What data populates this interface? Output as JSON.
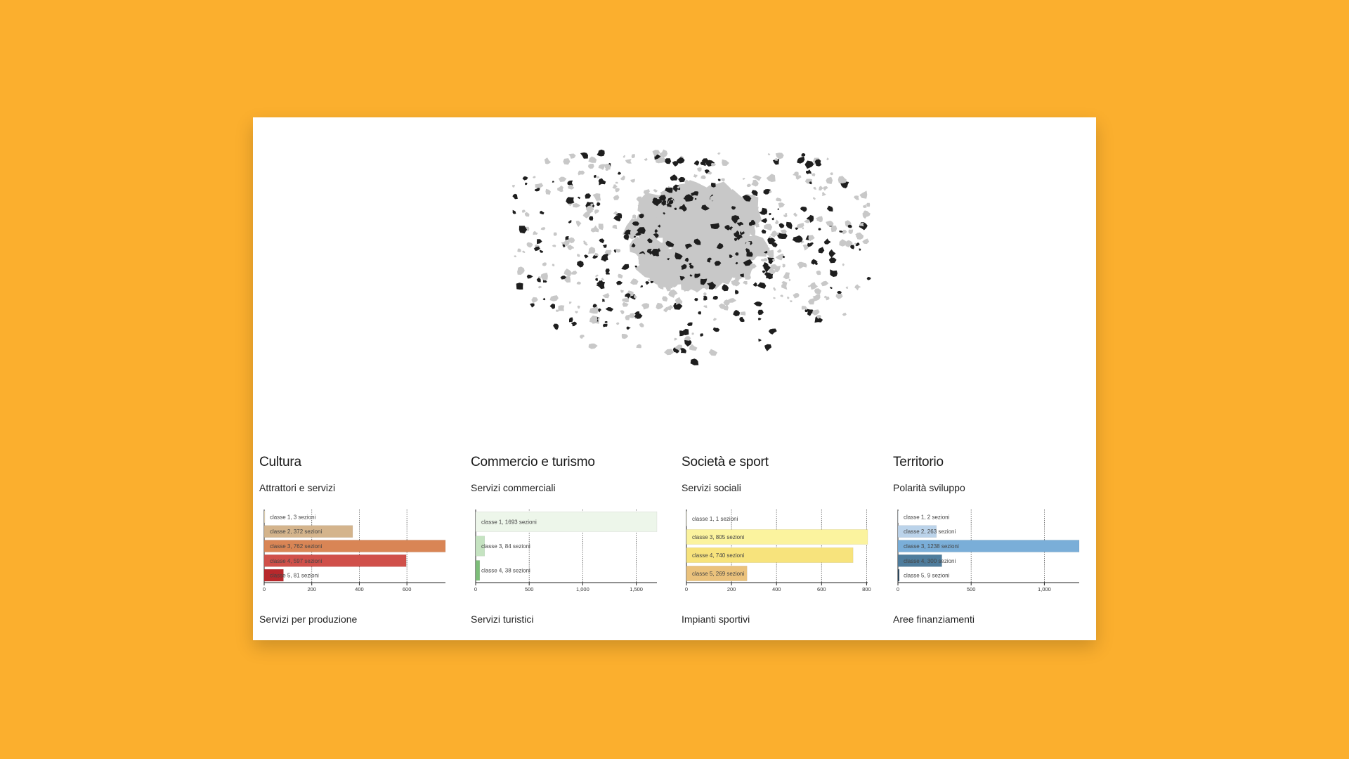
{
  "colors": {
    "background": "#FBAF2E",
    "card": "#FFFFFF",
    "map_gray": "#C8C8C8",
    "map_dark": "#1E1E1E"
  },
  "panels": [
    {
      "id": "cultura",
      "title": "Cultura",
      "subtitle": "Attrattori e servizi",
      "footer": "Servizi per produzione",
      "chart_data": {
        "type": "bar",
        "orientation": "horizontal",
        "categories": [
          "classe 1",
          "classe 2",
          "classe 3",
          "classe 4",
          "classe 5"
        ],
        "labels": [
          "classe 1, 3 sezioni",
          "classe 2, 372 sezioni",
          "classe 3, 762 sezioni",
          "classe 4, 597 sezioni",
          "classe 5, 81 sezioni"
        ],
        "values": [
          3,
          372,
          762,
          597,
          81
        ],
        "colors": [
          "#E8D8B8",
          "#D4B48C",
          "#D98555",
          "#D0504A",
          "#B8282C"
        ],
        "xlim": [
          0,
          762
        ],
        "xticks": [
          0,
          200,
          400,
          600
        ],
        "tick_labels": [
          "0",
          "200",
          "400",
          "600"
        ],
        "grid": true
      }
    },
    {
      "id": "commercio",
      "title": "Commercio e turismo",
      "subtitle": "Servizi commerciali",
      "footer": "Servizi turistici",
      "chart_data": {
        "type": "bar",
        "orientation": "horizontal",
        "categories": [
          "classe 1",
          "classe 3",
          "classe 4"
        ],
        "labels": [
          "classe 1, 1693 sezioni",
          "classe 3, 84 sezioni",
          "classe 4, 38 sezioni"
        ],
        "values": [
          1693,
          84,
          38
        ],
        "colors": [
          "#EDF6EA",
          "#C5E3C1",
          "#7DBE79"
        ],
        "xlim": [
          0,
          1693
        ],
        "xticks": [
          0,
          500,
          1000,
          1500
        ],
        "tick_labels": [
          "0",
          "500",
          "1,000",
          "1,500"
        ],
        "grid": true
      }
    },
    {
      "id": "societa",
      "title": "Società e sport",
      "subtitle": "Servizi sociali",
      "footer": "Impianti sportivi",
      "chart_data": {
        "type": "bar",
        "orientation": "horizontal",
        "categories": [
          "classe 1",
          "classe 3",
          "classe 4",
          "classe 5"
        ],
        "labels": [
          "classe 1, 1 sezioni",
          "classe 3, 805 sezioni",
          "classe 4, 740 sezioni",
          "classe 5, 269 sezioni"
        ],
        "values": [
          1,
          805,
          740,
          269
        ],
        "colors": [
          "#FDFCE8",
          "#FBF39E",
          "#F7E37C",
          "#EBC27C"
        ],
        "xlim": [
          0,
          805
        ],
        "xticks": [
          0,
          200,
          400,
          600,
          800
        ],
        "tick_labels": [
          "0",
          "200",
          "400",
          "600",
          "800"
        ],
        "grid": true
      }
    },
    {
      "id": "territorio",
      "title": "Territorio",
      "subtitle": "Polarità sviluppo",
      "footer": "Aree finanziamenti",
      "chart_data": {
        "type": "bar",
        "orientation": "horizontal",
        "categories": [
          "classe 1",
          "classe 2",
          "classe 3",
          "classe 4",
          "classe 5"
        ],
        "labels": [
          "classe 1, 2 sezioni",
          "classe 2, 263 sezioni",
          "classe 3, 1238 sezioni",
          "classe 4, 300 sezioni",
          "classe 5, 9 sezioni"
        ],
        "values": [
          2,
          263,
          1238,
          300,
          9
        ],
        "colors": [
          "#E6EEF6",
          "#BBD3EA",
          "#7AAED8",
          "#4E7C9C",
          "#27435A"
        ],
        "xlim": [
          0,
          1238
        ],
        "xticks": [
          0,
          500,
          1000
        ],
        "tick_labels": [
          "0",
          "500",
          "1,000"
        ],
        "grid": true
      }
    }
  ]
}
